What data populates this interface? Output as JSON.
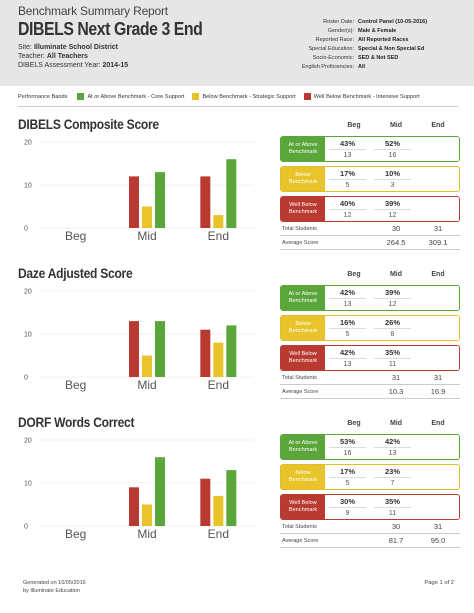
{
  "report": {
    "subtitle": "Benchmark Summary Report",
    "title": "DIBELS Next Grade 3 End",
    "site_label": "Site:",
    "site_value": "Illuminate School District",
    "teacher_label": "Teacher:",
    "teacher_value": "All Teachers",
    "year_label": "DIBELS Assessment Year:",
    "year_value": "2014-15"
  },
  "filters": [
    {
      "key": "Roster Date:",
      "value": "Control Panel (10-05-2016)"
    },
    {
      "key": "Gender(s):",
      "value": "Male & Female"
    },
    {
      "key": "Reported Race:",
      "value": "All Reported Races"
    },
    {
      "key": "Special Education:",
      "value": "Special & Non Special Ed"
    },
    {
      "key": "Socio-Economic:",
      "value": "SED & Not SED"
    },
    {
      "key": "English Proficiencies:",
      "value": "All"
    }
  ],
  "legend": {
    "title": "Performance Bands",
    "items": [
      {
        "label": "At or Above Benchmark - Core Support",
        "color": "#5aa63b"
      },
      {
        "label": "Below Benchmark - Strategic Support",
        "color": "#e8c42a"
      },
      {
        "label": "Well Below Benchmark - Intensive Support",
        "color": "#b83a30"
      }
    ]
  },
  "colors": {
    "green": "#5aa63b",
    "yellow": "#e8c42a",
    "red": "#b83a30"
  },
  "table_headers": [
    "Beg",
    "Mid",
    "End"
  ],
  "summary_labels": {
    "total": "Total Students",
    "avg": "Average Score"
  },
  "sections": [
    {
      "title": "DIBELS Composite Score",
      "bands": [
        {
          "label": "At or Above Benchmark",
          "mid_pct": "43%",
          "mid_n": "13",
          "end_pct": "52%",
          "end_n": "16"
        },
        {
          "label": "Below Benchmark",
          "mid_pct": "17%",
          "mid_n": "5",
          "end_pct": "10%",
          "end_n": "3"
        },
        {
          "label": "Well Below Benchmark",
          "mid_pct": "40%",
          "mid_n": "12",
          "end_pct": "39%",
          "end_n": "12"
        }
      ],
      "total": {
        "mid": "30",
        "end": "31"
      },
      "avg": {
        "mid": "264.5",
        "end": "309.1"
      }
    },
    {
      "title": "Daze Adjusted Score",
      "bands": [
        {
          "label": "At or Above Benchmark",
          "mid_pct": "42%",
          "mid_n": "13",
          "end_pct": "39%",
          "end_n": "12"
        },
        {
          "label": "Below Benchmark",
          "mid_pct": "16%",
          "mid_n": "5",
          "end_pct": "26%",
          "end_n": "8"
        },
        {
          "label": "Well Below Benchmark",
          "mid_pct": "42%",
          "mid_n": "13",
          "end_pct": "35%",
          "end_n": "11"
        }
      ],
      "total": {
        "mid": "31",
        "end": "31"
      },
      "avg": {
        "mid": "10.3",
        "end": "16.9"
      }
    },
    {
      "title": "DORF Words Correct",
      "bands": [
        {
          "label": "At or Above Benchmark",
          "mid_pct": "53%",
          "mid_n": "16",
          "end_pct": "42%",
          "end_n": "13"
        },
        {
          "label": "Below Benchmark",
          "mid_pct": "17%",
          "mid_n": "5",
          "end_pct": "23%",
          "end_n": "7"
        },
        {
          "label": "Well Below Benchmark",
          "mid_pct": "30%",
          "mid_n": "9",
          "end_pct": "35%",
          "end_n": "11"
        }
      ],
      "total": {
        "mid": "30",
        "end": "31"
      },
      "avg": {
        "mid": "81.7",
        "end": "95.0"
      }
    }
  ],
  "chart_data": [
    {
      "type": "bar",
      "title": "DIBELS Composite Score",
      "categories": [
        "Beg",
        "Mid",
        "End"
      ],
      "ylim": [
        0,
        20
      ],
      "yticks": [
        "0",
        "10",
        "20"
      ],
      "series": [
        {
          "name": "Well Below Benchmark",
          "color": "#b83a30",
          "values": [
            0,
            12,
            12
          ]
        },
        {
          "name": "Below Benchmark",
          "color": "#e8c42a",
          "values": [
            0,
            5,
            3
          ]
        },
        {
          "name": "At or Above Benchmark",
          "color": "#5aa63b",
          "values": [
            0,
            13,
            16
          ]
        }
      ]
    },
    {
      "type": "bar",
      "title": "Daze Adjusted Score",
      "categories": [
        "Beg",
        "Mid",
        "End"
      ],
      "ylim": [
        0,
        20
      ],
      "yticks": [
        "0",
        "10",
        "20"
      ],
      "series": [
        {
          "name": "Well Below Benchmark",
          "color": "#b83a30",
          "values": [
            0,
            13,
            11
          ]
        },
        {
          "name": "Below Benchmark",
          "color": "#e8c42a",
          "values": [
            0,
            5,
            8
          ]
        },
        {
          "name": "At or Above Benchmark",
          "color": "#5aa63b",
          "values": [
            0,
            13,
            12
          ]
        }
      ]
    },
    {
      "type": "bar",
      "title": "DORF Words Correct",
      "categories": [
        "Beg",
        "Mid",
        "End"
      ],
      "ylim": [
        0,
        20
      ],
      "yticks": [
        "0",
        "10",
        "20"
      ],
      "series": [
        {
          "name": "Well Below Benchmark",
          "color": "#b83a30",
          "values": [
            0,
            9,
            11
          ]
        },
        {
          "name": "Below Benchmark",
          "color": "#e8c42a",
          "values": [
            0,
            5,
            7
          ]
        },
        {
          "name": "At or Above Benchmark",
          "color": "#5aa63b",
          "values": [
            0,
            16,
            13
          ]
        }
      ]
    }
  ],
  "footer": {
    "generated": "Generated on 10/05/2016",
    "by": "by Illuminate Education",
    "page": "Page 1 of 2"
  }
}
